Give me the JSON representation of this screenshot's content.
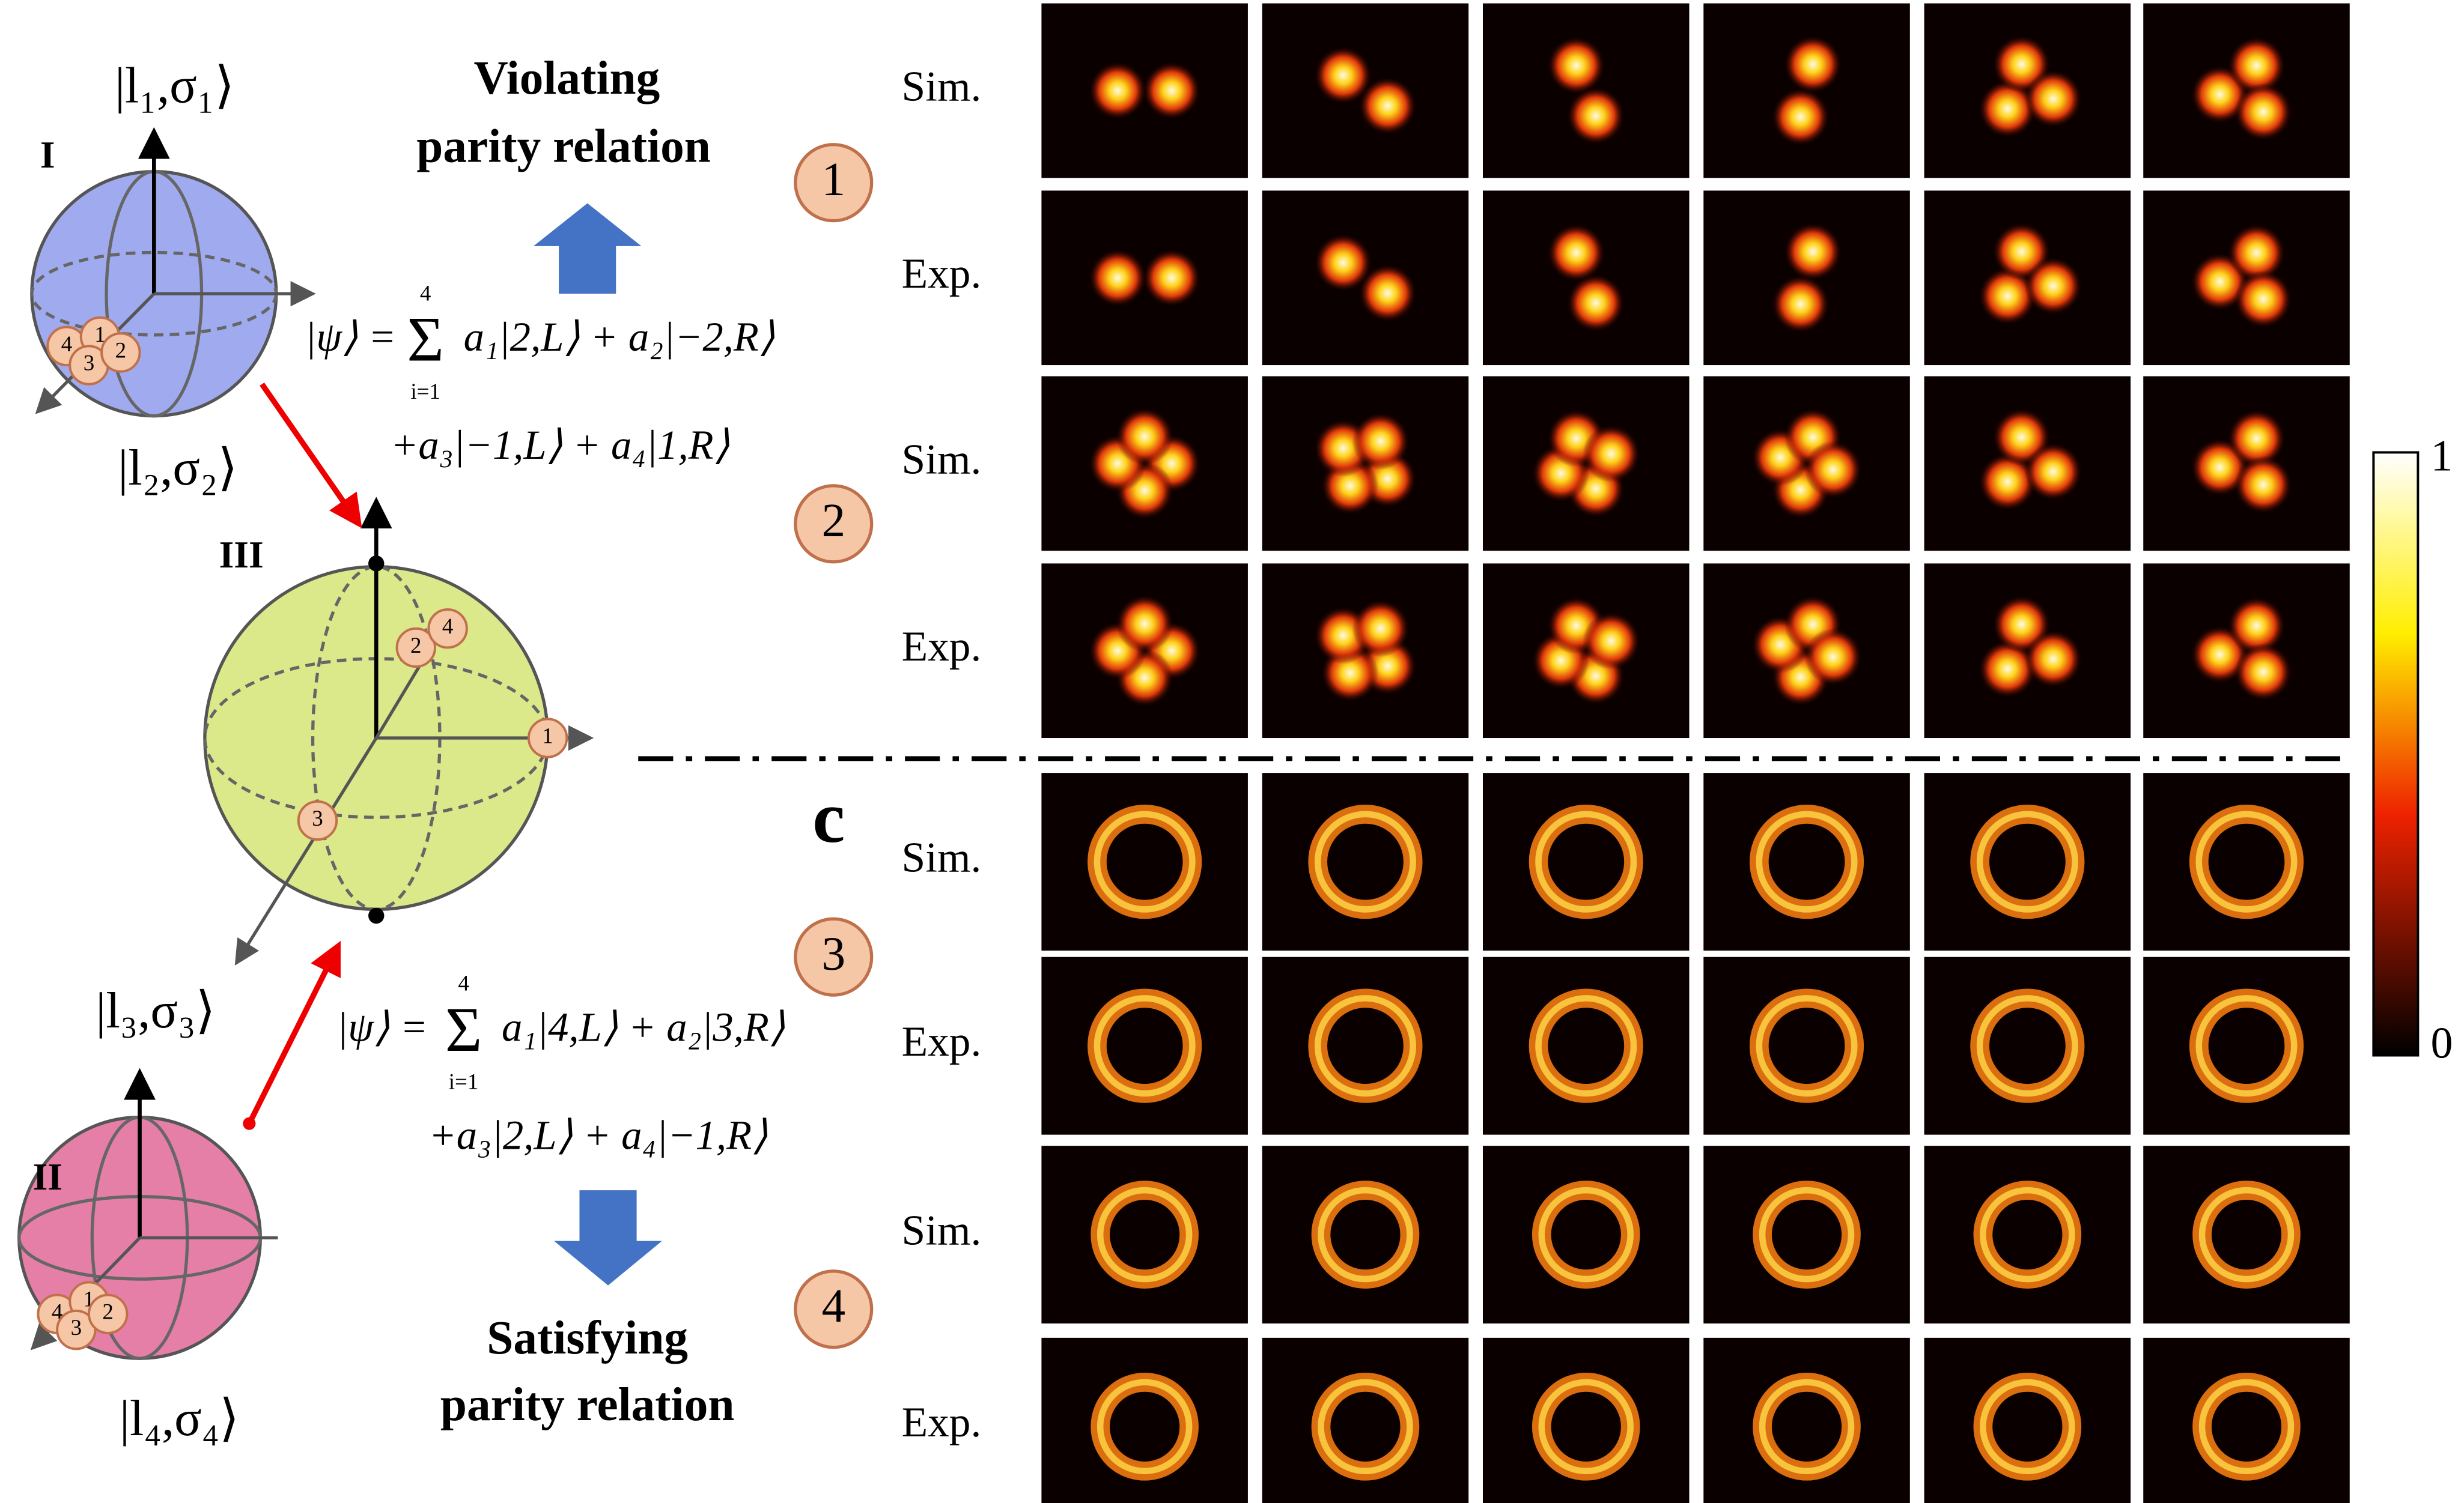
{
  "spheres": [
    {
      "label": "I",
      "ket": "|l₁,σ₁⟩",
      "ket2": "|l₂,σ₂⟩",
      "points": [
        "4",
        "1",
        "3",
        "2"
      ]
    },
    {
      "label": "III",
      "points": [
        "2",
        "4",
        "1",
        "3"
      ]
    },
    {
      "label": "II",
      "ket": "|l₃,σ₃⟩",
      "ket2": "|l₄,σ₄⟩",
      "points": [
        "4",
        "1",
        "3",
        "2"
      ]
    }
  ],
  "top_heading": [
    "Violating",
    "parity relation"
  ],
  "bottom_heading": [
    "Satisfying",
    "parity relation"
  ],
  "equation1": {
    "lhs": "|ψ⟩ =",
    "sum": "Σ",
    "upper": "4",
    "lower": "i=1",
    "line1": "a₁|2,L⟩ + a₂|−2,R⟩",
    "line2": "+a₃|−1,L⟩ + a₄|1,R⟩"
  },
  "equation2": {
    "lhs": "|ψ⟩ =",
    "sum": "Σ",
    "upper": "4",
    "lower": "i=1",
    "line1": "a₁|4,L⟩ + a₂|3,R⟩",
    "line2": "+a₃|2,L⟩ + a₄|−1,R⟩"
  },
  "markers": [
    "1",
    "2",
    "3",
    "4"
  ],
  "panel_letter": "c",
  "row_labels": [
    "Sim.",
    "Exp.",
    "Sim.",
    "Exp.",
    "Sim.",
    "Exp.",
    "Sim.",
    "Exp."
  ],
  "colorbar": {
    "max_label": "1",
    "min_label": "0"
  }
}
